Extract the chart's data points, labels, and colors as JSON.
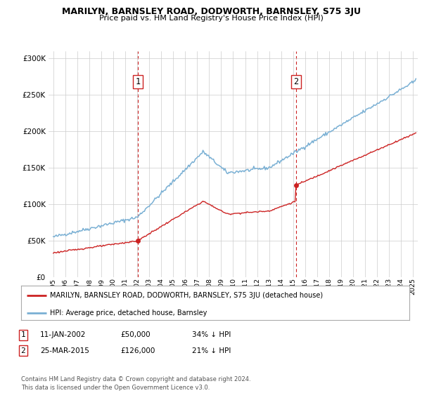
{
  "title": "MARILYN, BARNSLEY ROAD, DODWORTH, BARNSLEY, S75 3JU",
  "subtitle": "Price paid vs. HM Land Registry's House Price Index (HPI)",
  "legend_line1": "MARILYN, BARNSLEY ROAD, DODWORTH, BARNSLEY, S75 3JU (detached house)",
  "legend_line2": "HPI: Average price, detached house, Barnsley",
  "transaction1_date": "11-JAN-2002",
  "transaction1_price": "£50,000",
  "transaction1_hpi": "34% ↓ HPI",
  "transaction2_date": "25-MAR-2015",
  "transaction2_price": "£126,000",
  "transaction2_hpi": "21% ↓ HPI",
  "footer": "Contains HM Land Registry data © Crown copyright and database right 2024.\nThis data is licensed under the Open Government Licence v3.0.",
  "vline1_x": 2002.04,
  "vline2_x": 2015.23,
  "sale1_y": 50000,
  "sale2_y": 126000,
  "hpi_color": "#7ab0d4",
  "price_color": "#cc2222",
  "vline_color": "#cc2222",
  "ylim": [
    0,
    310000
  ],
  "xlim": [
    1994.6,
    2025.4
  ]
}
